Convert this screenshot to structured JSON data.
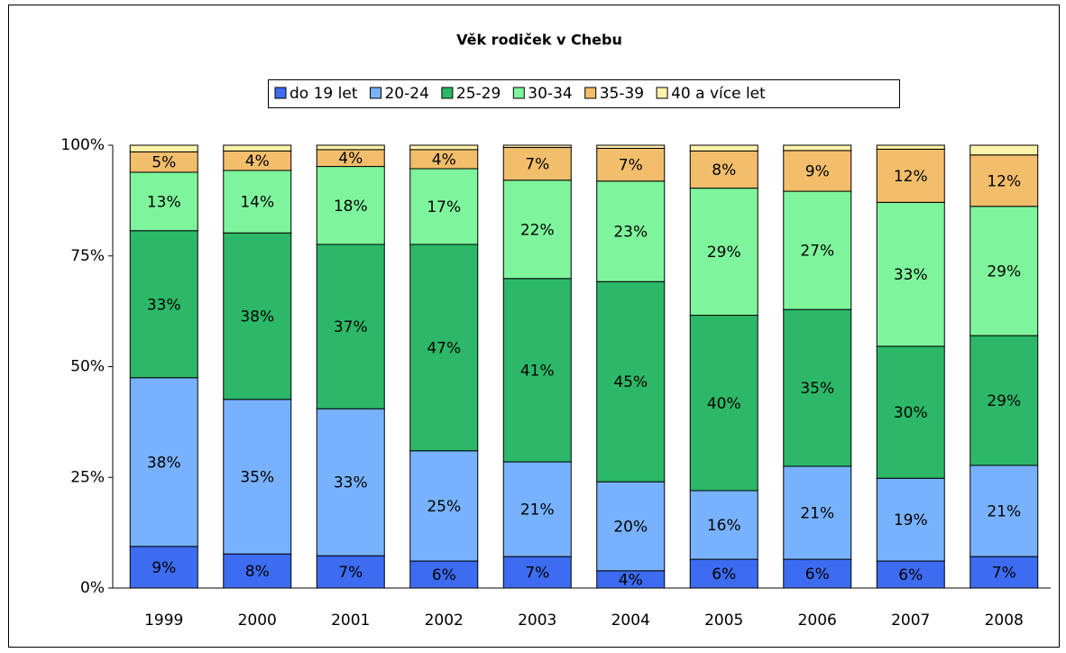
{
  "chart_data": {
    "type": "stacked_bar",
    "title": "Věk rodiček v Chebu",
    "categories": [
      "1999",
      "2000",
      "2001",
      "2002",
      "2003",
      "2004",
      "2005",
      "2006",
      "2007",
      "2008"
    ],
    "series": [
      {
        "name": "do 19 let",
        "color": "#3d6cf2",
        "values": [
          9.4,
          7.7,
          7.3,
          6.1,
          7.1,
          3.9,
          6.5,
          6.5,
          6.1,
          7.1
        ],
        "value_labels": [
          "9%",
          "8%",
          "7%",
          "6%",
          "7%",
          "4%",
          "6%",
          "6%",
          "6%",
          "7%"
        ]
      },
      {
        "name": "20-24",
        "color": "#78b2ff",
        "values": [
          38.1,
          34.9,
          33.2,
          24.9,
          21.4,
          20.1,
          15.5,
          21.0,
          18.7,
          20.6
        ],
        "value_labels": [
          "38%",
          "35%",
          "33%",
          "25%",
          "21%",
          "20%",
          "16%",
          "21%",
          "19%",
          "21%"
        ]
      },
      {
        "name": "25-29",
        "color": "#2cb868",
        "values": [
          33.2,
          37.6,
          37.1,
          46.6,
          41.4,
          45.2,
          39.6,
          35.4,
          29.8,
          29.3
        ],
        "value_labels": [
          "33%",
          "38%",
          "37%",
          "47%",
          "41%",
          "45%",
          "40%",
          "35%",
          "30%",
          "29%"
        ]
      },
      {
        "name": "30-34",
        "color": "#7ef59c",
        "values": [
          13.2,
          14.1,
          17.6,
          17.1,
          22.2,
          22.7,
          28.7,
          26.7,
          32.5,
          29.2
        ],
        "value_labels": [
          "13%",
          "14%",
          "18%",
          "17%",
          "22%",
          "23%",
          "29%",
          "27%",
          "33%",
          "29%"
        ]
      },
      {
        "name": "35-39",
        "color": "#f2be6c",
        "values": [
          4.6,
          4.4,
          3.8,
          4.3,
          7.4,
          7.4,
          8.4,
          9.2,
          12.0,
          11.6
        ],
        "value_labels": [
          "5%",
          "4%",
          "4%",
          "4%",
          "7%",
          "7%",
          "8%",
          "9%",
          "12%",
          "12%"
        ]
      },
      {
        "name": "40 a více let",
        "color": "#fff2aa",
        "values": [
          1.5,
          1.3,
          1.0,
          1.0,
          0.5,
          0.7,
          1.3,
          1.2,
          0.9,
          2.2
        ]
      }
    ],
    "ylim": [
      0,
      100
    ],
    "yticks": [
      {
        "value": 0,
        "label": "0%"
      },
      {
        "value": 25,
        "label": "25%"
      },
      {
        "value": 50,
        "label": "50%"
      },
      {
        "value": 75,
        "label": "75%"
      },
      {
        "value": 100,
        "label": "100%"
      }
    ],
    "legend": "top"
  }
}
